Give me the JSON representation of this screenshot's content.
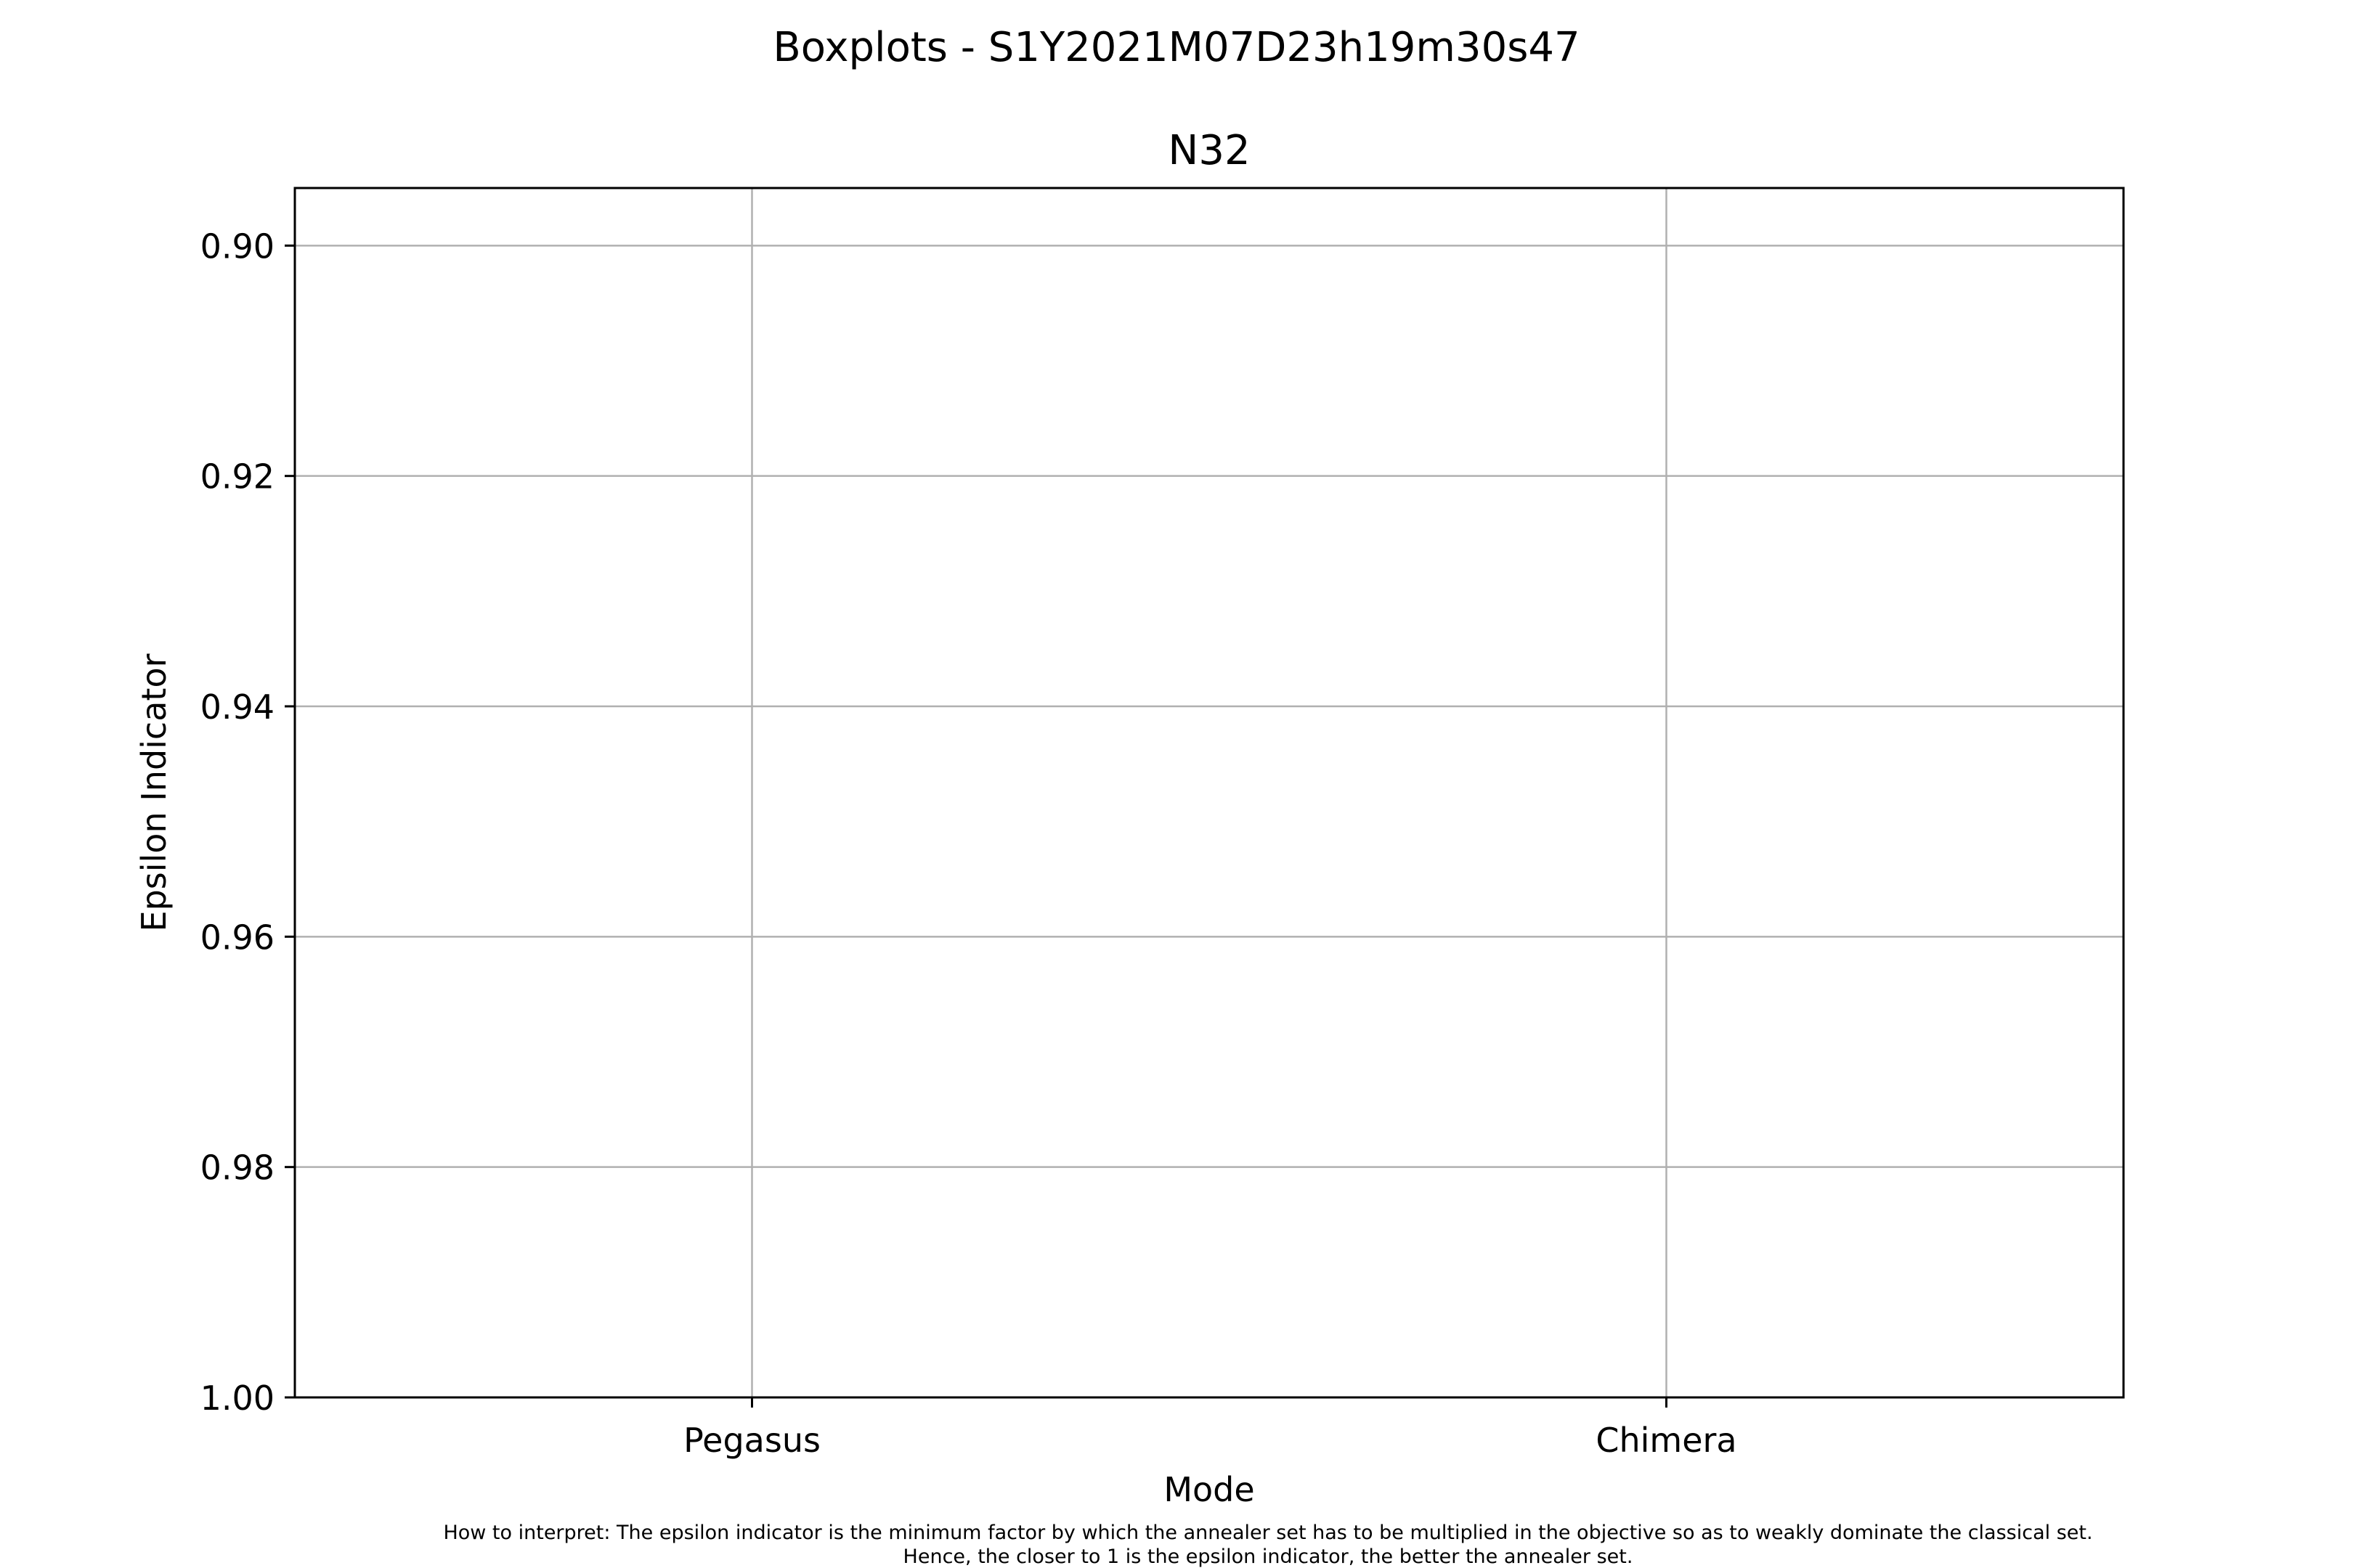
{
  "figure": {
    "suptitle": "Boxplots - S1Y2021M07D23h19m30s47",
    "footnote": [
      "How to interpret: The epsilon indicator is the minimum factor by which the annealer set has to be multiplied in the objective so as to weakly dominate the classical set.",
      "Hence, the closer to 1 is the epsilon indicator, the better the annealer set."
    ]
  },
  "chart_data": {
    "type": "boxplot",
    "title": "N32",
    "xlabel": "Mode",
    "ylabel": "Epsilon Indicator",
    "categories": [
      "Pegasus",
      "Chimera"
    ],
    "series": [
      {
        "name": "Pegasus",
        "values": []
      },
      {
        "name": "Chimera",
        "values": []
      }
    ],
    "ylim": [
      0.895,
      1.0
    ],
    "y_inverted": true,
    "yticks": [
      0.9,
      0.92,
      0.94,
      0.96,
      0.98,
      1.0
    ],
    "ytick_labels": [
      "0.90",
      "0.92",
      "0.94",
      "0.96",
      "0.98",
      "1.00"
    ],
    "grid": true,
    "colors": {
      "grid": "#b0b0b0",
      "axes": "#000000"
    }
  }
}
